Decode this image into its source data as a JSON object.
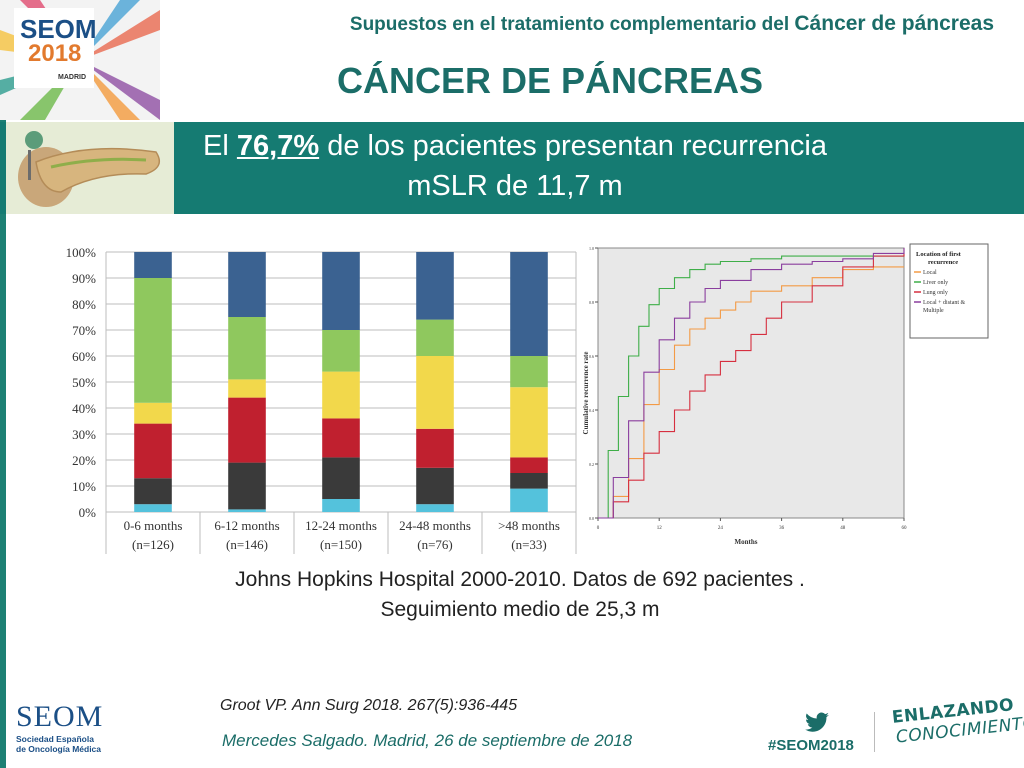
{
  "header": {
    "subtitle_part1": "Supuestos en el tratamiento complementario del",
    "subtitle_part2": "Cáncer de páncreas",
    "title": "CÁNCER DE PÁNCREAS",
    "logo_text": "SEOM",
    "logo_year": "2018",
    "logo_city": "MADRID"
  },
  "band": {
    "prefix": "El",
    "percent": "76,7%",
    "suffix": "de los pacientes presentan recurrencia",
    "line2": "mSLR de 11,7 m"
  },
  "caption": {
    "line1": "Johns Hopkins Hospital 2000-2010. Datos de 692 pacientes .",
    "line2": "Seguimiento medio de 25,3 m"
  },
  "footer": {
    "reference": "Groot VP. Ann Surg 2018. 267(5):936-445",
    "author": "Mercedes Salgado. Madrid, 26 de septiembre de 2018",
    "hashtag": "#SEOM2018",
    "slogan_line1": "ENLAZANDO",
    "slogan_line2": "CONOCIMIENTO",
    "seom_word": "SEOM",
    "seom_sub1": "Sociedad Española",
    "seom_sub2": "de Oncología Médica"
  },
  "colors": {
    "teal": "#157b72",
    "dark_blue": "#3b6291",
    "green": "#8fc85e",
    "yellow": "#f2d84b",
    "red": "#c0202f",
    "dark_gray": "#3a3a3a",
    "cyan": "#54c2dc"
  },
  "chart_data": [
    {
      "type": "bar",
      "stacked": true,
      "categories": [
        "0-6 months",
        "6-12 months",
        "12-24 months",
        "24-48 months",
        ">48 months"
      ],
      "category_n": [
        "(n=126)",
        "(n=146)",
        "(n=150)",
        "(n=76)",
        "(n=33)"
      ],
      "y_ticks": [
        "0%",
        "10%",
        "20%",
        "30%",
        "40%",
        "50%",
        "60%",
        "70%",
        "80%",
        "90%",
        "100%"
      ],
      "ylim": [
        0,
        100
      ],
      "grid": true,
      "legend": "none",
      "series": [
        {
          "color": "#54c2dc",
          "values": [
            3,
            1,
            5,
            3,
            9
          ]
        },
        {
          "color": "#3a3a3a",
          "values": [
            10,
            18,
            16,
            14,
            6
          ]
        },
        {
          "color": "#c0202f",
          "values": [
            21,
            25,
            15,
            15,
            6
          ]
        },
        {
          "color": "#f2d84b",
          "values": [
            8,
            7,
            18,
            28,
            27
          ]
        },
        {
          "color": "#8fc85e",
          "values": [
            48,
            24,
            16,
            14,
            12
          ]
        },
        {
          "color": "#3b6291",
          "values": [
            10,
            25,
            30,
            26,
            40
          ]
        }
      ]
    },
    {
      "type": "line",
      "step": true,
      "xlabel": "Months",
      "ylabel": "Cumulative recurrence rate",
      "x_ticks": [
        "0",
        "12",
        "24",
        "36",
        "48",
        "60"
      ],
      "y_ticks": [
        "0.0",
        "0.2",
        "0.4",
        "0.6",
        "0.8",
        "1.0"
      ],
      "xlim": [
        0,
        60
      ],
      "ylim": [
        0,
        1
      ],
      "legend": "right",
      "legend_title": "Location of first recurrence",
      "series": [
        {
          "name": "Local",
          "color": "#f39a45",
          "x": [
            0,
            3,
            6,
            9,
            12,
            15,
            18,
            21,
            24,
            27,
            30,
            36,
            42,
            48,
            54,
            60
          ],
          "y": [
            0,
            0.08,
            0.22,
            0.42,
            0.55,
            0.64,
            0.7,
            0.74,
            0.77,
            0.8,
            0.84,
            0.86,
            0.89,
            0.92,
            0.93,
            0.93
          ]
        },
        {
          "name": "Liver only",
          "color": "#3eae48",
          "x": [
            0,
            2,
            4,
            6,
            8,
            10,
            12,
            15,
            18,
            21,
            24,
            30,
            36,
            42,
            48,
            60
          ],
          "y": [
            0,
            0.25,
            0.45,
            0.6,
            0.71,
            0.79,
            0.85,
            0.89,
            0.92,
            0.94,
            0.95,
            0.96,
            0.97,
            0.97,
            0.97,
            0.98
          ]
        },
        {
          "name": "Lung only",
          "color": "#d62f3f",
          "x": [
            0,
            3,
            6,
            9,
            12,
            15,
            18,
            21,
            24,
            27,
            30,
            33,
            36,
            42,
            48,
            54,
            60
          ],
          "y": [
            0,
            0.06,
            0.14,
            0.24,
            0.32,
            0.4,
            0.47,
            0.53,
            0.58,
            0.62,
            0.68,
            0.74,
            0.8,
            0.86,
            0.93,
            0.97,
            1.0
          ]
        },
        {
          "name": "Local + distant & Multiple",
          "color": "#8a3e9e",
          "x": [
            0,
            3,
            6,
            9,
            12,
            15,
            18,
            21,
            24,
            30,
            36,
            42,
            48,
            54,
            60
          ],
          "y": [
            0,
            0.15,
            0.36,
            0.54,
            0.66,
            0.74,
            0.8,
            0.85,
            0.88,
            0.92,
            0.94,
            0.95,
            0.96,
            0.98,
            1.0
          ]
        }
      ]
    }
  ]
}
